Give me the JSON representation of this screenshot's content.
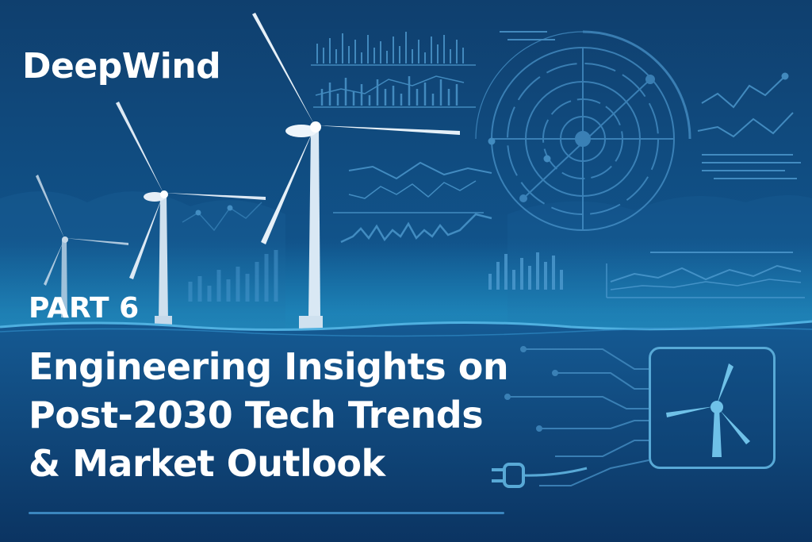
{
  "brand": {
    "name": "DeepWind"
  },
  "series_label": "PART 6",
  "title": {
    "line1": "Engineering Insights on",
    "line2": "Post-2030 Tech Trends",
    "line3": "& Market Outlook"
  },
  "icons": [
    "wind-turbine-icon",
    "power-plug-icon"
  ],
  "colors": {
    "background": "#0f3f6e",
    "accent": "#58a9d6",
    "text": "#ffffff"
  }
}
